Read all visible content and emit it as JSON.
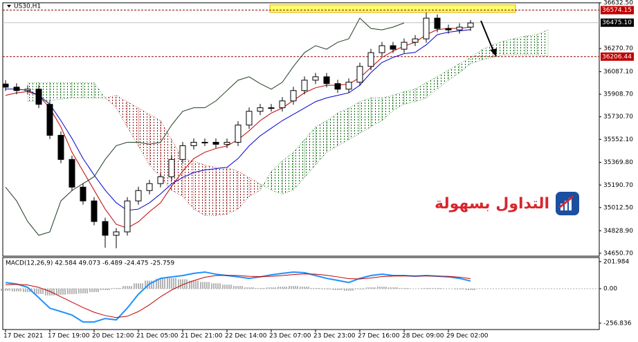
{
  "chart_data": [
    {
      "type": "candlestick",
      "title": "US30,H1",
      "categories": [
        "17 Dec 2021",
        null,
        null,
        null,
        "17 Dec 19:00",
        null,
        null,
        null,
        "20 Dec 12:00",
        null,
        null,
        null,
        "21 Dec 05:00",
        null,
        null,
        null,
        "21 Dec 21:00",
        null,
        null,
        null,
        "22 Dec 14:00",
        null,
        null,
        null,
        "23 Dec 07:00",
        null,
        null,
        null,
        "23 Dec 23:00",
        null,
        null,
        null,
        "27 Dec 16:00",
        null,
        null,
        null,
        "28 Dec 09:00",
        null,
        null,
        null,
        "29 Dec 02:00",
        null,
        null,
        null,
        null,
        null,
        null,
        null,
        null,
        null
      ],
      "open": [
        35990,
        35965,
        35938,
        35949,
        35829,
        35584,
        35393,
        35174,
        35065,
        34902,
        34793,
        34820,
        35065,
        35147,
        35202,
        35256,
        35393,
        35502,
        35529,
        35529,
        35513,
        35529,
        35665,
        35774,
        35802,
        35802,
        35856,
        35938,
        36020,
        36047,
        35993,
        35949,
        36004,
        36129,
        36238,
        36293,
        36265,
        36320,
        36347,
        36511,
        36429,
        36418,
        36440,
        null,
        null,
        null,
        null,
        null,
        null,
        null
      ],
      "high": [
        36020,
        35995,
        35979,
        35979,
        35859,
        35614,
        35423,
        35204,
        35095,
        34932,
        34850,
        35095,
        35177,
        35232,
        35286,
        35423,
        35532,
        35559,
        35559,
        35559,
        35559,
        35695,
        35804,
        35832,
        35832,
        35886,
        35968,
        36050,
        36077,
        36077,
        36023,
        36034,
        36159,
        36268,
        36323,
        36323,
        36350,
        36377,
        36555,
        36541,
        36459,
        36470,
        36495,
        null,
        null,
        null,
        null,
        null,
        null,
        null
      ],
      "low": [
        35935,
        35908,
        35908,
        35799,
        35554,
        35363,
        35144,
        35035,
        34872,
        34695,
        34690,
        34790,
        35035,
        35117,
        35172,
        35226,
        35363,
        35472,
        35499,
        35483,
        35483,
        35499,
        35635,
        35744,
        35772,
        35772,
        35826,
        35908,
        35990,
        35963,
        35919,
        35919,
        35974,
        36099,
        36208,
        36235,
        36235,
        36290,
        36317,
        36399,
        36388,
        36388,
        36410,
        null,
        null,
        null,
        null,
        null,
        null,
        null
      ],
      "close": [
        35965,
        35938,
        35949,
        35829,
        35584,
        35393,
        35174,
        35065,
        34902,
        34793,
        34820,
        35065,
        35147,
        35202,
        35256,
        35393,
        35502,
        35529,
        35529,
        35513,
        35529,
        35665,
        35774,
        35802,
        35802,
        35856,
        35938,
        36020,
        36047,
        35993,
        35949,
        36004,
        36129,
        36238,
        36293,
        36265,
        36320,
        36347,
        36511,
        36429,
        36418,
        36440,
        36473,
        null,
        null,
        null,
        null,
        null,
        null,
        null
      ],
      "bull_color": "#ffffff",
      "bear_color": "#000000",
      "wick_color": "#000000",
      "series": [
        {
          "color": "#c00000",
          "values": [
            35900,
            35920,
            35930,
            35900,
            35800,
            35650,
            35450,
            35300,
            35150,
            35000,
            34880,
            34850,
            34900,
            34980,
            35050,
            35180,
            35300,
            35400,
            35450,
            35480,
            35500,
            35550,
            35620,
            35700,
            35760,
            35800,
            35860,
            35920,
            35960,
            35980,
            35980,
            35990,
            36040,
            36120,
            36200,
            36250,
            36290,
            36320,
            36380,
            36420,
            36430,
            36430,
            36440,
            null,
            null,
            null,
            null,
            null,
            null,
            null
          ]
        },
        {
          "color": "#0000cc",
          "values": [
            35950,
            35950,
            35940,
            35900,
            35830,
            35700,
            35560,
            35400,
            35270,
            35150,
            35050,
            34990,
            35000,
            35050,
            35120,
            35200,
            35250,
            35290,
            35310,
            35320,
            35330,
            35400,
            35500,
            35580,
            35640,
            35700,
            35750,
            35800,
            35850,
            35880,
            35900,
            35920,
            35980,
            36080,
            36160,
            36200,
            36230,
            36240,
            36300,
            36380,
            36400,
            36410,
            36420,
            null,
            null,
            null,
            null,
            null,
            null,
            null
          ]
        },
        {
          "color": "#1f3d1f",
          "values": [
            35174,
            35065,
            34902,
            34793,
            34820,
            35065,
            35147,
            35202,
            35256,
            35393,
            35502,
            35529,
            35529,
            35513,
            35529,
            35665,
            35774,
            35802,
            35802,
            35856,
            35938,
            36020,
            36047,
            35993,
            35949,
            36004,
            36129,
            36238,
            36293,
            36265,
            36320,
            36347,
            36511,
            36429,
            36418,
            36440,
            36473,
            null,
            null,
            null,
            null,
            null,
            null,
            null,
            null,
            null,
            null,
            null,
            null,
            null
          ]
        }
      ],
      "cloud": {
        "span_a": [
          null,
          null,
          36000,
          36000,
          36000,
          36000,
          36000,
          36000,
          36000,
          35880,
          35800,
          35650,
          35500,
          35350,
          35250,
          35150,
          35100,
          35000,
          34950,
          34950,
          34960,
          35000,
          35100,
          35150,
          35300,
          35380,
          35450,
          35550,
          35650,
          35700,
          35760,
          35800,
          35850,
          35880,
          35880,
          35900,
          35930,
          35950,
          36000,
          36050,
          36100,
          36150,
          36200,
          36260,
          36300,
          36330,
          36350,
          36370,
          36380,
          36420
        ],
        "span_b": [
          null,
          null,
          35850,
          35850,
          35860,
          35870,
          35880,
          35880,
          35880,
          35880,
          35900,
          35850,
          35800,
          35750,
          35700,
          35550,
          35400,
          35380,
          35350,
          35330,
          35330,
          35300,
          35250,
          35200,
          35150,
          35120,
          35150,
          35250,
          35350,
          35450,
          35500,
          35550,
          35600,
          35650,
          35700,
          35780,
          35830,
          35850,
          35880,
          35950,
          36020,
          36080,
          36150,
          36180,
          36200,
          36220,
          36220,
          36220,
          36220,
          36210
        ],
        "up_color": "#006400",
        "down_color": "#8b0000"
      },
      "levels": [
        {
          "value": 36574.15,
          "color": "#8b0000",
          "box_color": "#c00000",
          "style": "dashed"
        },
        {
          "value": 36475.1,
          "label": "36475.10",
          "color": "#c0c0c0",
          "box_color": "#000000",
          "style": "solid"
        },
        {
          "value": 36206.44,
          "color": "#8b0000",
          "box_color": "#c00000",
          "style": "dashed"
        }
      ],
      "ylim": [
        34628,
        36632.5
      ],
      "yticks": [
        {
          "value": 36632.5,
          "label": "36632.50"
        },
        {
          "value": 36270.7,
          "label": "36270.70"
        },
        {
          "value": 36087.1,
          "label": "36087.10"
        },
        {
          "value": 35908.7,
          "label": "35908.70"
        },
        {
          "value": 35730.7,
          "label": "35730.70"
        },
        {
          "value": 35552.1,
          "label": "35552.10"
        },
        {
          "value": 35369.8,
          "label": "35369.80"
        },
        {
          "value": 35190.7,
          "label": "35190.70"
        },
        {
          "value": 35012.5,
          "label": "35012.50"
        },
        {
          "value": 34828.9,
          "label": "34828.90"
        },
        {
          "value": 34650.7,
          "label": "34650.70"
        }
      ],
      "grid": false
    },
    {
      "type": "macd",
      "title": "MACD(12,26,9) 42.584 49.073 -6.489 -24.475 -25.759",
      "histogram": [
        -15,
        -20,
        -25,
        -40,
        -50,
        -45,
        -40,
        -35,
        -25,
        -10,
        5,
        20,
        40,
        60,
        75,
        80,
        70,
        60,
        50,
        40,
        30,
        20,
        10,
        5,
        10,
        15,
        20,
        15,
        5,
        -5,
        -10,
        -15,
        -5,
        10,
        15,
        10,
        5,
        0,
        5,
        5,
        0,
        -5,
        -10,
        null,
        null,
        null,
        null,
        null,
        null,
        null
      ],
      "histogram_color": "#b4b4b4",
      "series": [
        {
          "color": "#1e90ff",
          "values": [
            46,
            35,
            10,
            -67,
            -145,
            -170,
            -196,
            -248,
            -248,
            -222,
            -232,
            -144,
            -41,
            36,
            77,
            88,
            98,
            114,
            124,
            108,
            98,
            88,
            77,
            88,
            103,
            114,
            124,
            119,
            98,
            77,
            62,
            46,
            77,
            98,
            108,
            98,
            98,
            93,
            98,
            93,
            88,
            77,
            57,
            null,
            null,
            null,
            null,
            null,
            null,
            null
          ]
        },
        {
          "color": "#c00000",
          "values": [
            30,
            32,
            28,
            10,
            -20,
            -60,
            -100,
            -140,
            -175,
            -200,
            -215,
            -205,
            -170,
            -120,
            -60,
            -10,
            30,
            60,
            85,
            98,
            100,
            98,
            92,
            90,
            92,
            98,
            105,
            110,
            108,
            100,
            88,
            75,
            72,
            80,
            90,
            94,
            95,
            95,
            95,
            94,
            92,
            86,
            75,
            null,
            null,
            null,
            null,
            null,
            null,
            null
          ]
        }
      ],
      "ylim": [
        -304,
        232
      ],
      "yticks": [
        201.984,
        {
          "value": 0,
          "label": "0.00"
        },
        -256.836
      ]
    }
  ],
  "logo": {
    "text": "التداول بسهولة"
  }
}
